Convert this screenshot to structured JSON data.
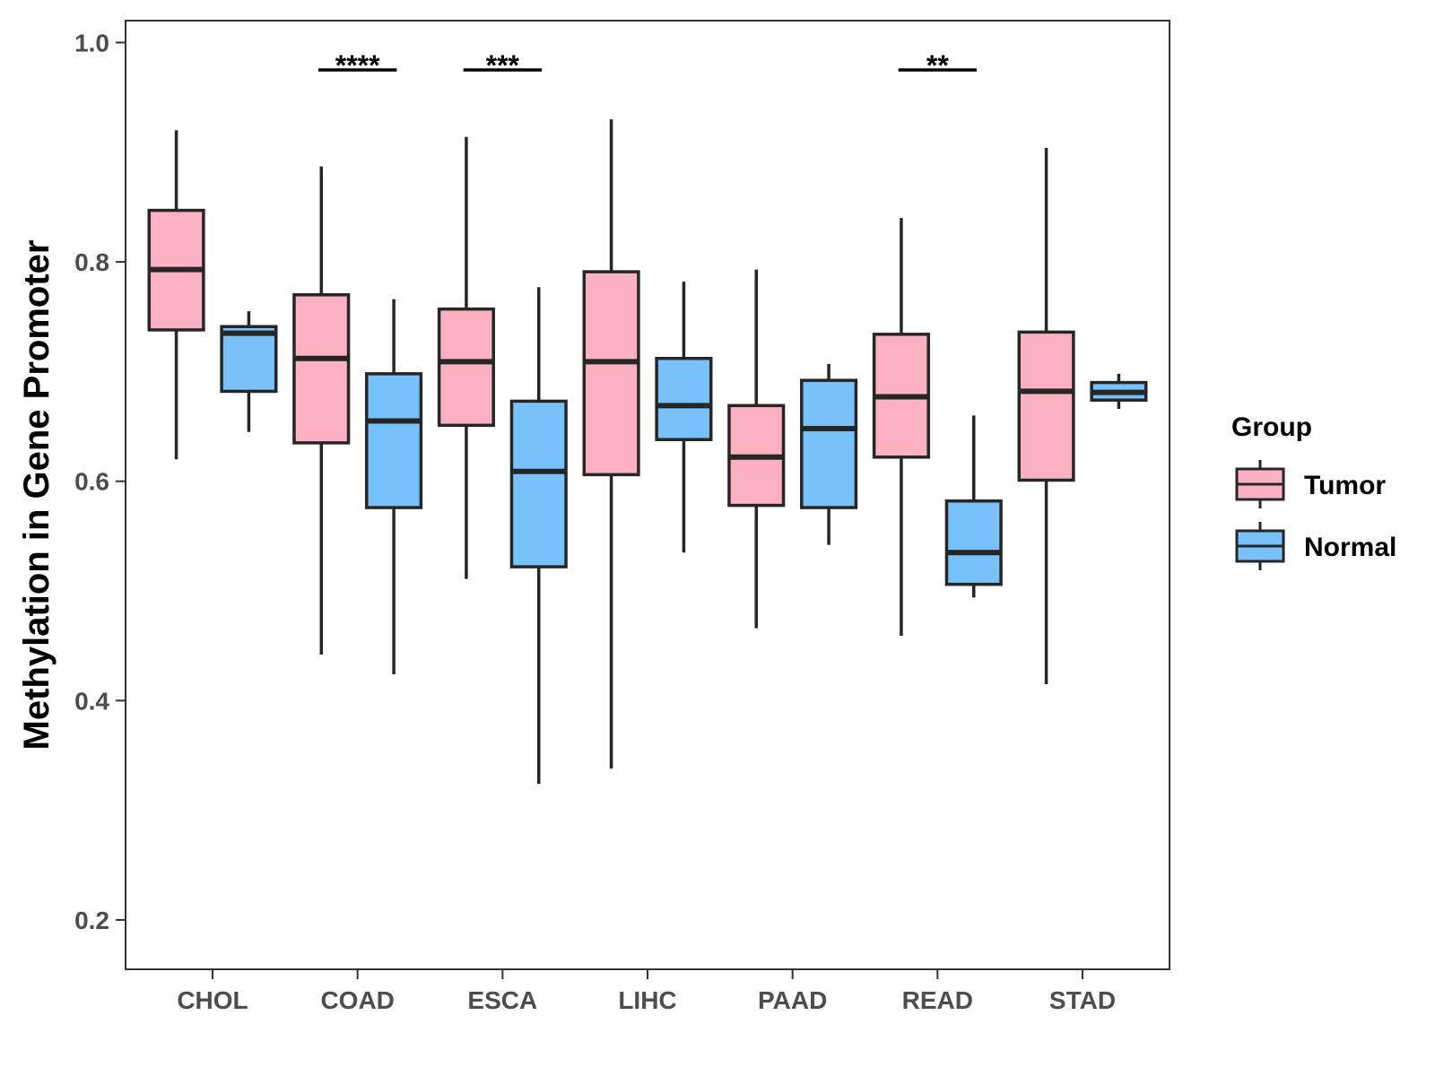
{
  "chart_data": {
    "type": "boxplot",
    "title": "",
    "xlabel": "",
    "ylabel": "Methylation in Gene Promoter",
    "ylim": [
      0.155,
      1.02
    ],
    "yticks": [
      0.2,
      0.4,
      0.6,
      0.8,
      1.0
    ],
    "ytick_labels": [
      "0.2",
      "0.4",
      "0.6",
      "0.8",
      "1.0"
    ],
    "categories": [
      "CHOL",
      "COAD",
      "ESCA",
      "LIHC",
      "PAAD",
      "READ",
      "STAD"
    ],
    "legend": {
      "title": "Group",
      "position": "right",
      "entries": [
        {
          "name": "Tumor",
          "color": "#FBB1C2"
        },
        {
          "name": "Normal",
          "color": "#78C1FA"
        }
      ]
    },
    "series": [
      {
        "name": "Tumor",
        "color": "#FBB1C2",
        "boxes": [
          {
            "category": "CHOL",
            "min": 0.62,
            "q1": 0.738,
            "median": 0.793,
            "q3": 0.847,
            "max": 0.92
          },
          {
            "category": "COAD",
            "min": 0.442,
            "q1": 0.635,
            "median": 0.712,
            "q3": 0.77,
            "max": 0.887
          },
          {
            "category": "ESCA",
            "min": 0.511,
            "q1": 0.651,
            "median": 0.709,
            "q3": 0.757,
            "max": 0.914
          },
          {
            "category": "LIHC",
            "min": 0.338,
            "q1": 0.606,
            "median": 0.709,
            "q3": 0.791,
            "max": 0.93
          },
          {
            "category": "PAAD",
            "min": 0.466,
            "q1": 0.578,
            "median": 0.622,
            "q3": 0.669,
            "max": 0.793
          },
          {
            "category": "READ",
            "min": 0.459,
            "q1": 0.622,
            "median": 0.677,
            "q3": 0.734,
            "max": 0.84
          },
          {
            "category": "STAD",
            "min": 0.415,
            "q1": 0.601,
            "median": 0.682,
            "q3": 0.736,
            "max": 0.904
          }
        ]
      },
      {
        "name": "Normal",
        "color": "#78C1FA",
        "boxes": [
          {
            "category": "CHOL",
            "min": 0.645,
            "q1": 0.682,
            "median": 0.735,
            "q3": 0.741,
            "max": 0.755
          },
          {
            "category": "COAD",
            "min": 0.424,
            "q1": 0.576,
            "median": 0.655,
            "q3": 0.698,
            "max": 0.766
          },
          {
            "category": "ESCA",
            "min": 0.324,
            "q1": 0.522,
            "median": 0.609,
            "q3": 0.673,
            "max": 0.777
          },
          {
            "category": "LIHC",
            "min": 0.535,
            "q1": 0.638,
            "median": 0.669,
            "q3": 0.712,
            "max": 0.782
          },
          {
            "category": "PAAD",
            "min": 0.542,
            "q1": 0.576,
            "median": 0.648,
            "q3": 0.692,
            "max": 0.707
          },
          {
            "category": "READ",
            "min": 0.494,
            "q1": 0.506,
            "median": 0.535,
            "q3": 0.582,
            "max": 0.66
          },
          {
            "category": "STAD",
            "min": 0.666,
            "q1": 0.674,
            "median": 0.681,
            "q3": 0.69,
            "max": 0.698
          }
        ]
      }
    ],
    "annotations": [
      {
        "category": "COAD",
        "text": "****",
        "y": 0.975
      },
      {
        "category": "ESCA",
        "text": "***",
        "y": 0.975
      },
      {
        "category": "READ",
        "text": "**",
        "y": 0.975
      }
    ]
  }
}
